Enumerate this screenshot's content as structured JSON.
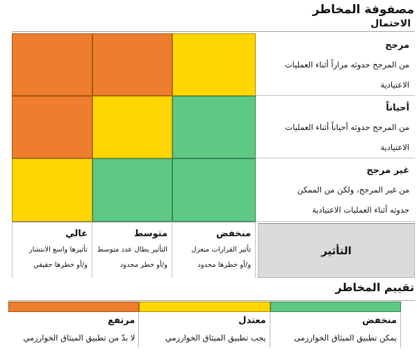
{
  "title": "مصفوفة المخاطر",
  "axes": {
    "probability": "الاحتمال",
    "impact": "التأثير"
  },
  "colors": {
    "orange": "#EF7D2E",
    "yellow": "#FFD600",
    "green": "#5EC983",
    "impact_cell_bg": "#DBDBDB"
  },
  "matrix": {
    "rows": [
      {
        "label": "مرجح",
        "desc1": "من المرجح حدوثه مراراً أثناء العمليات",
        "desc2": "الاعتيادية",
        "cells": [
          "orange",
          "orange",
          "yellow"
        ]
      },
      {
        "label": "أحياناً",
        "desc1": "من المرجح حدوثه أحياناً أثناء العمليات",
        "desc2": "الاعتيادية",
        "cells": [
          "orange",
          "yellow",
          "green"
        ]
      },
      {
        "label": "غير مرجح",
        "desc1": "من غير المرجح، ولكن من الممكن",
        "desc2": "حدوثه أثناء العمليات الاعتيادية",
        "cells": [
          "yellow",
          "green",
          "green"
        ]
      }
    ],
    "columns": [
      {
        "label": "عالي",
        "desc1": "تأثيرها واسع الانتشار",
        "desc2": "و/أو خطرها حقيقي"
      },
      {
        "label": "متوسط",
        "desc1": "التأثير يطال عدد متوسط",
        "desc2": "و/أو خطر محدود"
      },
      {
        "label": "منخفض",
        "desc1": "تأثير القرارات منعزل",
        "desc2": "و/أو خطرها محدود"
      }
    ]
  },
  "assessment": {
    "title": "تقييم المخاطر",
    "items": [
      {
        "label": "مرتفع",
        "desc": "لا بدّ من تطبيق الميثاق الخوارزمي",
        "color": "orange"
      },
      {
        "label": "معتدل",
        "desc": "يجب تطبيق الميثاق الخوارزمي",
        "color": "yellow"
      },
      {
        "label": "منخفض",
        "desc": "يمكن تطبيق الميثاق الخوارزمى",
        "color": "green"
      }
    ]
  },
  "chart_data": {
    "type": "heatmap",
    "title": "مصفوفة المخاطر",
    "row_axis_label": "الاحتمال",
    "column_axis_label": "التأثير",
    "rows": [
      "مرجح",
      "أحياناً",
      "غير مرجح"
    ],
    "columns_display_ltr": [
      "عالي",
      "متوسط",
      "منخفض"
    ],
    "cell_colors_ltr": [
      [
        "orange",
        "orange",
        "yellow"
      ],
      [
        "orange",
        "yellow",
        "green"
      ],
      [
        "yellow",
        "green",
        "green"
      ]
    ],
    "legend": [
      {
        "label": "مرتفع",
        "color": "orange"
      },
      {
        "label": "معتدل",
        "color": "yellow"
      },
      {
        "label": "منخفض",
        "color": "green"
      }
    ],
    "legend_position": "bottom"
  }
}
